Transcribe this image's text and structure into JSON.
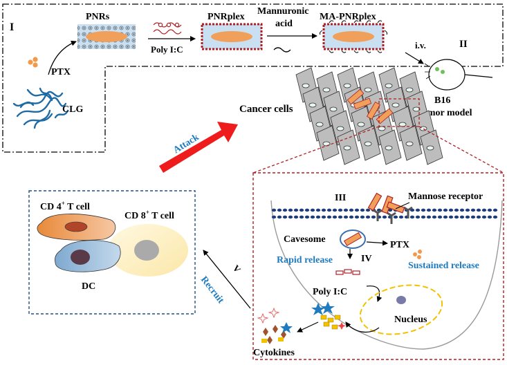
{
  "section_labels": {
    "I": "I",
    "II": "II",
    "III": "III",
    "IV": "IV",
    "V": "V"
  },
  "synthesis": {
    "ptx": "PTX",
    "clg": "CLG",
    "pnrs": "PNRs",
    "poly_ic": "Poly I:C",
    "pnrplex": "PNRplex",
    "mannuronic_line1": "Mannuronic",
    "mannuronic_line2": "acid",
    "ma_pnrplex": "MA-PNRplex"
  },
  "injection": {
    "route": "i.v.",
    "model_line1": "B16",
    "model_line2": "Tumor model"
  },
  "tumor": {
    "cancer_cells": "Cancer cells",
    "attack": "Attack"
  },
  "immune": {
    "cd4": "CD 4",
    "cd4_sup": "+",
    "cd4_suffix": " T cell",
    "cd8": "CD 8",
    "cd8_sup": "+",
    "cd8_suffix": " T cell",
    "dc": "DC",
    "recruit": "Recruit"
  },
  "cell_detail": {
    "mannose_receptor": "Mannose receptor",
    "cavesome": "Cavesome",
    "ptx": "PTX",
    "rapid_release": "Rapid release",
    "sustained_release": "Sustained release",
    "poly_ic": "Poly I:C",
    "nucleus": "Nucleus",
    "cytokines": "Cytokines"
  },
  "colors": {
    "label_blue": "#1f7bc0",
    "dashed_red": "#b01e23",
    "dashed_blue": "#1f4e8c",
    "attack_arrow": "#ee1c1c",
    "nanorod_fill": "#c9dff2",
    "nanorod_core": "#f0a05a",
    "nucleus_ring": "#f2c200"
  }
}
